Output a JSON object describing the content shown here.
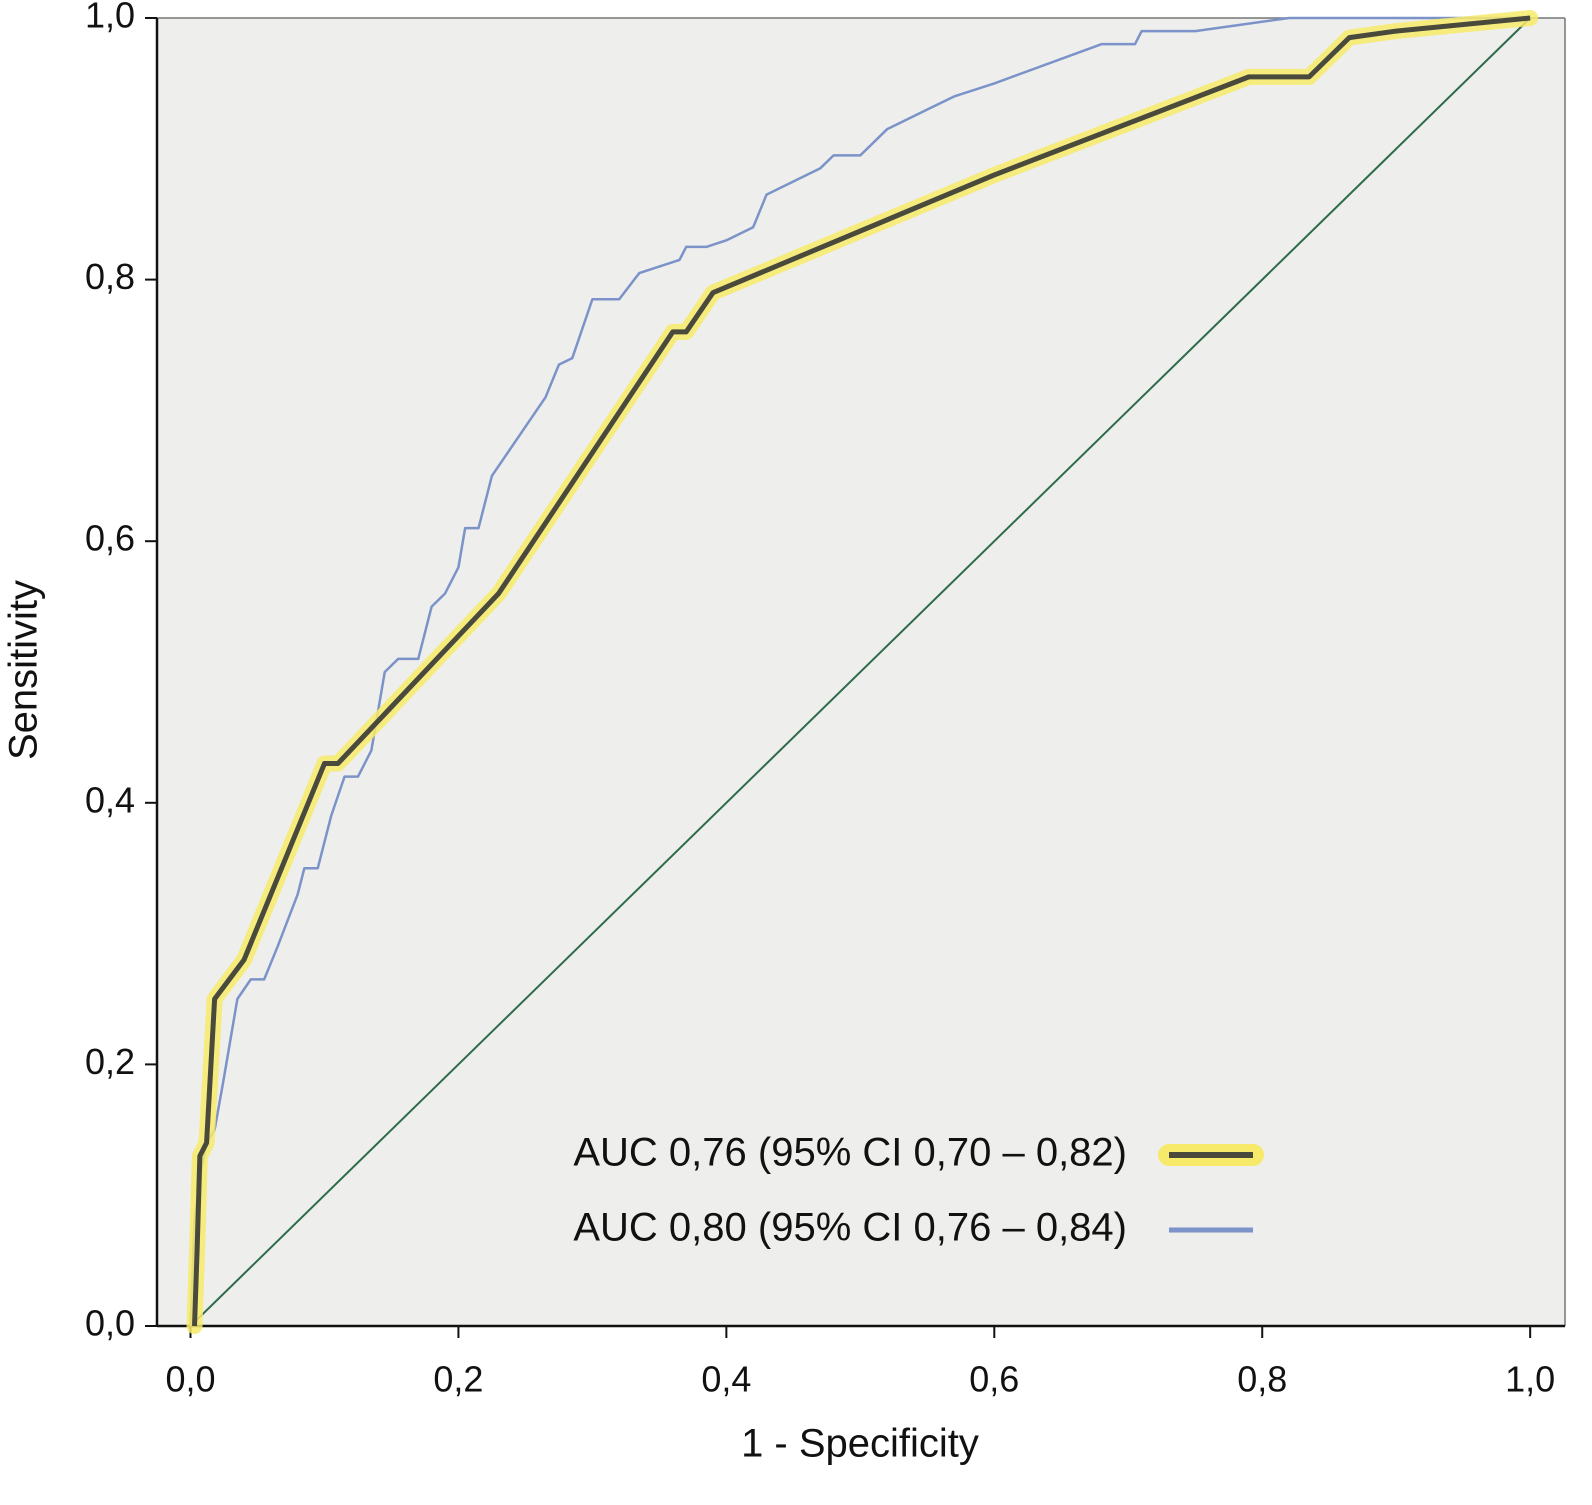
{
  "chart_data": {
    "type": "line",
    "xlabel": "1 - Specificity",
    "ylabel": "Sensitivity",
    "xlim": [
      -0.025,
      1.026
    ],
    "ylim": [
      0,
      1
    ],
    "xticks": [
      {
        "value": 0,
        "label": "0,0"
      },
      {
        "value": 0.2,
        "label": "0,2"
      },
      {
        "value": 0.4,
        "label": "0,4"
      },
      {
        "value": 0.6,
        "label": "0,6"
      },
      {
        "value": 0.8,
        "label": "0,8"
      },
      {
        "value": 1,
        "label": "1,0"
      }
    ],
    "yticks": [
      {
        "value": 0,
        "label": "0,0"
      },
      {
        "value": 0.2,
        "label": "0,2"
      },
      {
        "value": 0.4,
        "label": "0,4"
      },
      {
        "value": 0.6,
        "label": "0,6"
      },
      {
        "value": 0.8,
        "label": "0,8"
      },
      {
        "value": 1,
        "label": "1,0"
      }
    ],
    "background": "#eeeeec",
    "grid": false,
    "legend": {
      "loc": "lower right"
    },
    "reference_line": {
      "x": [
        0,
        1
      ],
      "values": [
        0,
        1
      ],
      "color": "#2e6b4a"
    },
    "series": [
      {
        "name": "AUC 0,76 (95% CI 0,70 – 0,82)",
        "color": "#4a4a3c",
        "glow_color": "#f7ea6a",
        "x": [
          0.003,
          0.005,
          0.007,
          0.012,
          0.018,
          0.04,
          0.1,
          0.11,
          0.23,
          0.36,
          0.37,
          0.39,
          0.6,
          0.79,
          0.835,
          0.865,
          0.9,
          1
        ],
        "values": [
          0,
          0.06,
          0.13,
          0.14,
          0.25,
          0.28,
          0.43,
          0.43,
          0.56,
          0.76,
          0.76,
          0.79,
          0.88,
          0.955,
          0.955,
          0.985,
          0.99,
          1
        ]
      },
      {
        "name": "AUC 0,80 (95% CI 0,76 – 0,84)",
        "color": "#7b93c9",
        "x": [
          0,
          0.003,
          0.008,
          0.012,
          0.018,
          0.025,
          0.03,
          0.035,
          0.045,
          0.055,
          0.065,
          0.08,
          0.085,
          0.095,
          0.105,
          0.115,
          0.125,
          0.135,
          0.14,
          0.145,
          0.155,
          0.17,
          0.18,
          0.19,
          0.2,
          0.205,
          0.215,
          0.225,
          0.245,
          0.265,
          0.275,
          0.285,
          0.3,
          0.32,
          0.335,
          0.365,
          0.37,
          0.385,
          0.4,
          0.42,
          0.43,
          0.45,
          0.47,
          0.48,
          0.5,
          0.52,
          0.55,
          0.57,
          0.6,
          0.68,
          0.705,
          0.71,
          0.75,
          0.82,
          1
        ],
        "values": [
          0,
          0.08,
          0.12,
          0.14,
          0.15,
          0.19,
          0.22,
          0.25,
          0.265,
          0.265,
          0.29,
          0.33,
          0.35,
          0.35,
          0.39,
          0.42,
          0.42,
          0.44,
          0.47,
          0.5,
          0.51,
          0.51,
          0.55,
          0.56,
          0.58,
          0.61,
          0.61,
          0.65,
          0.68,
          0.71,
          0.735,
          0.74,
          0.785,
          0.785,
          0.805,
          0.815,
          0.825,
          0.825,
          0.83,
          0.84,
          0.865,
          0.875,
          0.885,
          0.895,
          0.895,
          0.915,
          0.93,
          0.94,
          0.95,
          0.98,
          0.98,
          0.99,
          0.99,
          1,
          1
        ]
      }
    ]
  }
}
